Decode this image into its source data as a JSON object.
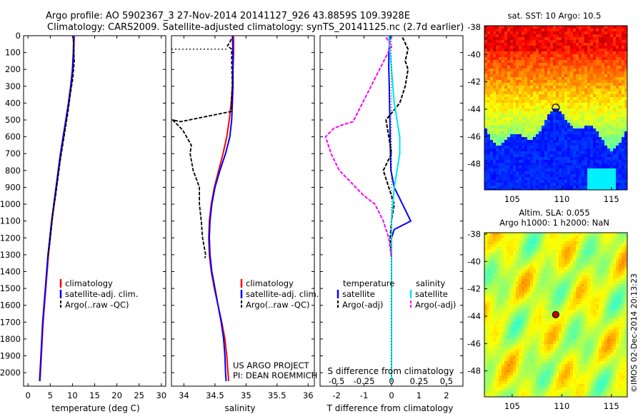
{
  "title_line1": "Argo profile: AO 5902367_3 27-Nov-2014 20141127_926 43.8859S 109.3928E",
  "title_line2": "Climatology: CARS2009. Satellite-adjusted climatology: synTS_20141125.nc (2.7d earlier)",
  "colors": {
    "climatology": "#ff0000",
    "satellite": "#0000ff",
    "argo": "#000000",
    "sal_satellite": "#00e5ee",
    "sal_argo": "#ff00ff"
  },
  "chart_data": [
    {
      "type": "line",
      "xlabel": "temperature (deg C)",
      "ylabel": "",
      "xlim": [
        -1,
        31
      ],
      "ylim": [
        2080,
        0
      ],
      "xticks": [
        "0",
        "5",
        "10",
        "15",
        "20",
        "25",
        "30"
      ],
      "yticks": [
        "0",
        "100",
        "200",
        "300",
        "400",
        "500",
        "600",
        "700",
        "800",
        "900",
        "1000",
        "1100",
        "1200",
        "1300",
        "1400",
        "1500",
        "1600",
        "1700",
        "1800",
        "1900",
        "2000"
      ],
      "legend": [
        "climatology",
        "satellite-adj. clim.",
        "Argo(..raw -QC)"
      ],
      "series": [
        {
          "name": "climatology",
          "x": [
            10.4,
            10.3,
            10.1,
            9.7,
            9.2,
            8.6,
            8.0,
            7.4,
            6.9,
            6.4,
            5.9,
            5.4,
            5.0,
            4.6,
            4.3,
            4.0,
            3.7,
            3.4,
            3.2,
            3.0,
            2.8,
            2.7
          ],
          "y": [
            0,
            100,
            200,
            300,
            400,
            500,
            600,
            700,
            800,
            900,
            1000,
            1100,
            1200,
            1300,
            1400,
            1500,
            1600,
            1700,
            1800,
            1900,
            2000,
            2050
          ]
        },
        {
          "name": "satellite-adj. clim.",
          "x": [
            10.3,
            10.2,
            10.0,
            9.6,
            9.1,
            8.5,
            7.9,
            7.3,
            6.8,
            6.3,
            5.8,
            5.3,
            4.9,
            4.5,
            4.2,
            3.9,
            3.6,
            3.3,
            3.1,
            2.9,
            2.7,
            2.6
          ],
          "y": [
            0,
            100,
            200,
            300,
            400,
            500,
            600,
            700,
            800,
            900,
            1000,
            1100,
            1200,
            1300,
            1400,
            1500,
            1600,
            1700,
            1800,
            1900,
            2000,
            2050
          ]
        },
        {
          "name": "Argo(..raw -QC)",
          "x": [
            10.2,
            10.4,
            10.1,
            9.5,
            9.0,
            8.4,
            7.8,
            7.2,
            6.7,
            6.2,
            5.6,
            5.2,
            4.8,
            4.4
          ],
          "y": [
            20,
            150,
            250,
            350,
            450,
            550,
            650,
            750,
            850,
            950,
            1050,
            1150,
            1250,
            1320
          ]
        }
      ]
    },
    {
      "type": "line",
      "xlabel": "salinity",
      "xlim": [
        33.8,
        36.1
      ],
      "ylim": [
        2080,
        0
      ],
      "xticks": [
        "34",
        "34.5",
        "35",
        "35.5",
        "36"
      ],
      "legend": [
        "climatology",
        "satellite-adj. clim.",
        "Argo(..raw -QC)"
      ],
      "annotation": [
        "US ARGO PROJECT",
        "PI: DEAN ROEMMICH"
      ],
      "series": [
        {
          "name": "climatology",
          "x": [
            34.8,
            34.8,
            34.79,
            34.78,
            34.76,
            34.73,
            34.69,
            34.63,
            34.56,
            34.49,
            34.44,
            34.41,
            34.4,
            34.41,
            34.44,
            34.49,
            34.55,
            34.61,
            34.66,
            34.69,
            34.71,
            34.72
          ],
          "y": [
            0,
            100,
            200,
            300,
            400,
            500,
            600,
            700,
            800,
            900,
            1000,
            1100,
            1200,
            1300,
            1400,
            1500,
            1600,
            1700,
            1800,
            1900,
            2000,
            2050
          ]
        },
        {
          "name": "satellite-adj. clim.",
          "x": [
            34.78,
            34.79,
            34.79,
            34.79,
            34.78,
            34.77,
            34.74,
            34.67,
            34.58,
            34.5,
            34.45,
            34.42,
            34.41,
            34.42,
            34.45,
            34.5,
            34.55,
            34.6,
            34.64,
            34.66,
            34.67,
            34.68
          ],
          "y": [
            0,
            100,
            200,
            300,
            400,
            500,
            600,
            700,
            800,
            900,
            1000,
            1100,
            1200,
            1300,
            1400,
            1500,
            1600,
            1700,
            1800,
            1900,
            2000,
            2050
          ]
        },
        {
          "name": "Argo(..raw -QC)",
          "x": [
            34.76,
            34.74,
            34.7,
            34.77,
            34.77,
            34.78,
            34.76,
            33.95,
            33.82,
            33.98,
            34.12,
            34.1,
            34.15,
            34.2,
            34.25,
            34.25,
            34.28,
            34.3,
            34.35,
            34.34
          ],
          "y": [
            20,
            40,
            60,
            80,
            150,
            300,
            450,
            510,
            500,
            560,
            650,
            700,
            800,
            850,
            900,
            1000,
            1100,
            1200,
            1300,
            1320
          ]
        }
      ]
    },
    {
      "type": "line",
      "xlabel": "T difference from climatology",
      "xlabel2": "S difference from climatology",
      "xlim": [
        -2.6,
        2.6
      ],
      "ylim": [
        2080,
        0
      ],
      "xticks": [
        "-2",
        "-1",
        "0",
        "1",
        "2"
      ],
      "xticks2": [
        "-0.5",
        "-0.25",
        "0",
        "0.25",
        "0.5"
      ],
      "legend_headers": [
        "temperature",
        "salinity"
      ],
      "legend": [
        "satellite",
        "Argo(-adj)",
        "satellite",
        "Argo(-adj)"
      ],
      "series": [
        {
          "name": "satellite",
          "x": [
            -0.05,
            -0.1,
            -0.1,
            -0.08,
            -0.07,
            -0.06,
            -0.05,
            -0.04,
            -0.02,
            0.1,
            0.4,
            0.7,
            0.1,
            0.0,
            0.0,
            0.0,
            0.0,
            0.0,
            0.0,
            0.0,
            0.0
          ],
          "y": [
            0,
            100,
            200,
            300,
            400,
            500,
            600,
            700,
            800,
            900,
            1000,
            1100,
            1150,
            1200,
            1300,
            1400,
            1500,
            1600,
            1700,
            1800,
            2050
          ]
        },
        {
          "name": "Argo(-adj)",
          "x": [
            0.4,
            0.6,
            0.5,
            0.6,
            0.5,
            0.3,
            -0.2,
            -0.1,
            0.0,
            -0.3,
            -0.1,
            0.1,
            0.0,
            -0.05,
            0.0
          ],
          "y": [
            10,
            80,
            150,
            200,
            300,
            400,
            500,
            600,
            700,
            800,
            900,
            1000,
            1100,
            1200,
            1320
          ]
        },
        {
          "name": "satellite",
          "x": [
            -0.1,
            -0.05,
            0.0,
            0.05,
            0.1,
            0.2,
            0.3,
            0.3,
            0.2,
            0.1,
            0.05,
            0.0,
            0.0,
            0.0,
            0.0
          ],
          "y": [
            0,
            100,
            200,
            300,
            400,
            500,
            600,
            700,
            800,
            900,
            1000,
            1100,
            1200,
            1500,
            2050
          ]
        },
        {
          "name": "Argo(-adj)",
          "x": [
            -0.2,
            0.0,
            -1.4,
            -1.8,
            -2.1,
            -2.4,
            -2.2,
            -1.9,
            -1.6,
            -1.3,
            -1.0,
            -0.6,
            -0.3,
            -0.1,
            0.0
          ],
          "y": [
            10,
            60,
            510,
            530,
            550,
            600,
            700,
            800,
            850,
            900,
            950,
            1000,
            1100,
            1200,
            1320
          ]
        }
      ]
    },
    {
      "type": "heatmap",
      "title": "sat. SST: 10 Argo: 10.5",
      "xticks": [
        "105",
        "110",
        "115"
      ],
      "yticks": [
        "-38",
        "-40",
        "-42",
        "-44",
        "-46",
        "-48"
      ],
      "xlim": [
        102.2,
        116.6
      ],
      "ylim": [
        -49.9,
        -37.9
      ],
      "marker": {
        "lon": 109.39,
        "lat": -43.89
      }
    },
    {
      "type": "heatmap",
      "title_line1": "Altim. SLA: 0.055",
      "title_line2": "Argo h1000: 1 h2000: NaN",
      "xticks": [
        "105",
        "110",
        "115"
      ],
      "yticks": [
        "-38",
        "-40",
        "-42",
        "-44",
        "-46",
        "-48"
      ],
      "xlim": [
        102.2,
        116.6
      ],
      "ylim": [
        -49.9,
        -37.9
      ],
      "marker": {
        "lon": 109.39,
        "lat": -43.89
      }
    }
  ],
  "credit": "©IMOS 02-Dec-2014 20:13:23"
}
